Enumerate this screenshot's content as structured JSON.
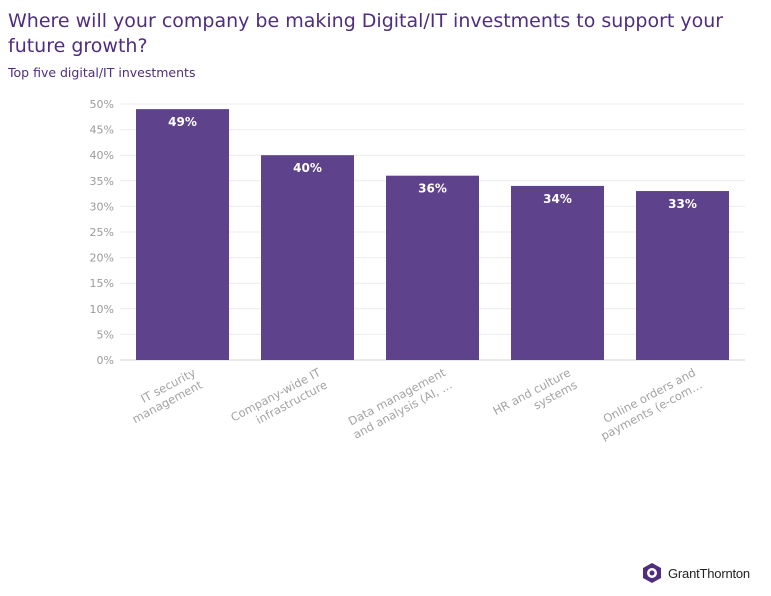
{
  "title": "Where will your company be making Digital/IT investments to support your future growth?",
  "subtitle": "Top five digital/IT investments",
  "brand": {
    "name": "GrantThornton",
    "color": "#4f2d7f"
  },
  "chart_data": {
    "type": "bar",
    "categories": [
      [
        "IT security",
        "management"
      ],
      [
        "Company-wide IT",
        "infrastructure"
      ],
      [
        "Data management",
        "and analysis (AI, …"
      ],
      [
        "HR and culture",
        "systems"
      ],
      [
        "Online orders and",
        "payments (e-com…"
      ]
    ],
    "values": [
      49,
      40,
      36,
      34,
      33
    ],
    "data_labels": [
      "49%",
      "40%",
      "36%",
      "34%",
      "33%"
    ],
    "ylim": [
      0,
      50
    ],
    "yticks": [
      "0%",
      "5%",
      "10%",
      "15%",
      "20%",
      "25%",
      "30%",
      "35%",
      "40%",
      "45%",
      "50%"
    ],
    "bar_color": "#5e428c",
    "grid": true,
    "xlabel": "",
    "ylabel": ""
  }
}
